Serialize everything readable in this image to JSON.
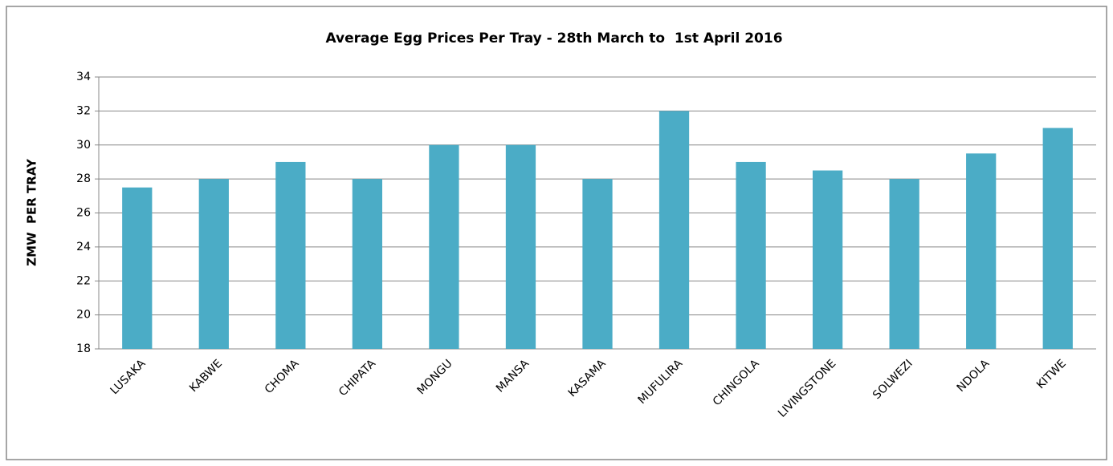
{
  "chart_data": {
    "type": "bar",
    "title": "Average Egg Prices Per Tray - 28th March to  1st April 2016",
    "y_label": "ZMW  PER TRAY",
    "categories": [
      "LUSAKA",
      "KABWE",
      "CHOMA",
      "CHIPATA",
      "MONGU",
      "MANSA",
      "KASAMA",
      "MUFULIRA",
      "CHINGOLA",
      "LIVINGSTONE",
      "SOLWEZI",
      "NDOLA",
      "KITWE"
    ],
    "values": [
      27.5,
      28,
      29,
      28,
      30,
      30,
      28,
      32,
      29,
      28.5,
      28,
      29.5,
      31
    ],
    "color": "#4bacc6",
    "ylim": [
      18,
      34
    ],
    "yticks": [
      18,
      20,
      22,
      24,
      26,
      28,
      30,
      32,
      34
    ],
    "grid": true
  }
}
